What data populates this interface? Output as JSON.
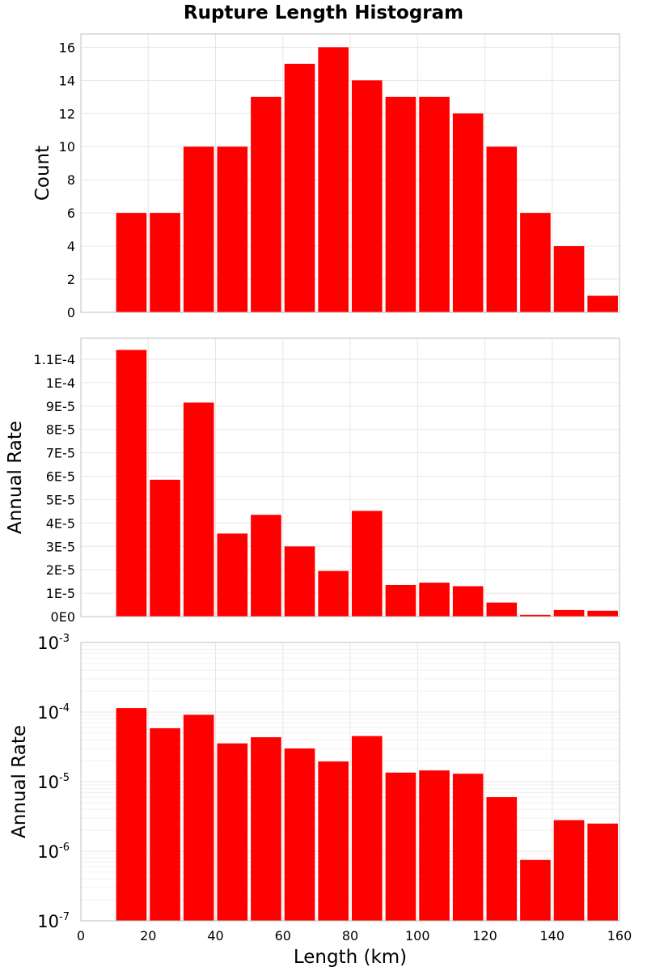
{
  "chart_data": {
    "type": "bar",
    "title": "Rupture Length Histogram",
    "bar_color": "#ff0000",
    "x": {
      "label": "Length (km)",
      "range": [
        0,
        160
      ],
      "ticks": [
        0,
        20,
        40,
        60,
        80,
        100,
        120,
        140,
        160
      ],
      "bin_width": 10,
      "bin_centers": [
        15,
        25,
        35,
        45,
        55,
        65,
        75,
        85,
        95,
        105,
        115,
        125,
        135,
        145,
        155
      ]
    },
    "panels": [
      {
        "ylabel": "Count",
        "scale": "linear",
        "ylim": [
          0,
          16.8
        ],
        "yticks": [
          0,
          2,
          4,
          6,
          8,
          10,
          12,
          14,
          16
        ],
        "ytick_labels": [
          "0",
          "2",
          "4",
          "6",
          "8",
          "10",
          "12",
          "14",
          "16"
        ],
        "values": [
          6,
          6,
          10,
          10,
          13,
          15,
          16,
          14,
          13,
          13,
          12,
          10,
          6,
          4,
          1
        ]
      },
      {
        "ylabel": "Annual Rate",
        "scale": "linear",
        "ylim": [
          0,
          0.000119
        ],
        "yticks": [
          0,
          1e-05,
          2e-05,
          3e-05,
          4e-05,
          5e-05,
          6e-05,
          7e-05,
          8e-05,
          9e-05,
          0.0001,
          0.00011
        ],
        "ytick_labels": [
          "0E0",
          "1E-5",
          "2E-5",
          "3E-5",
          "4E-5",
          "5E-5",
          "6E-5",
          "7E-5",
          "8E-5",
          "9E-5",
          "1E-4",
          "1.1E-4"
        ],
        "values": [
          0.000114,
          5.85e-05,
          9.15e-05,
          3.55e-05,
          4.35e-05,
          3e-05,
          1.95e-05,
          4.52e-05,
          1.35e-05,
          1.45e-05,
          1.3e-05,
          6e-06,
          7.5e-07,
          2.8e-06,
          2.5e-06
        ]
      },
      {
        "ylabel": "Annual Rate",
        "scale": "log",
        "ylim": [
          1e-07,
          0.001
        ],
        "yticks": [
          1e-07,
          1e-06,
          1e-05,
          0.0001,
          0.001
        ],
        "ytick_base": "10",
        "ytick_exponents": [
          "-7",
          "-6",
          "-5",
          "-4",
          "-3"
        ],
        "values": [
          0.000114,
          5.85e-05,
          9.15e-05,
          3.55e-05,
          4.35e-05,
          3e-05,
          1.95e-05,
          4.52e-05,
          1.35e-05,
          1.45e-05,
          1.3e-05,
          6e-06,
          7.5e-07,
          2.8e-06,
          2.5e-06
        ]
      }
    ]
  }
}
